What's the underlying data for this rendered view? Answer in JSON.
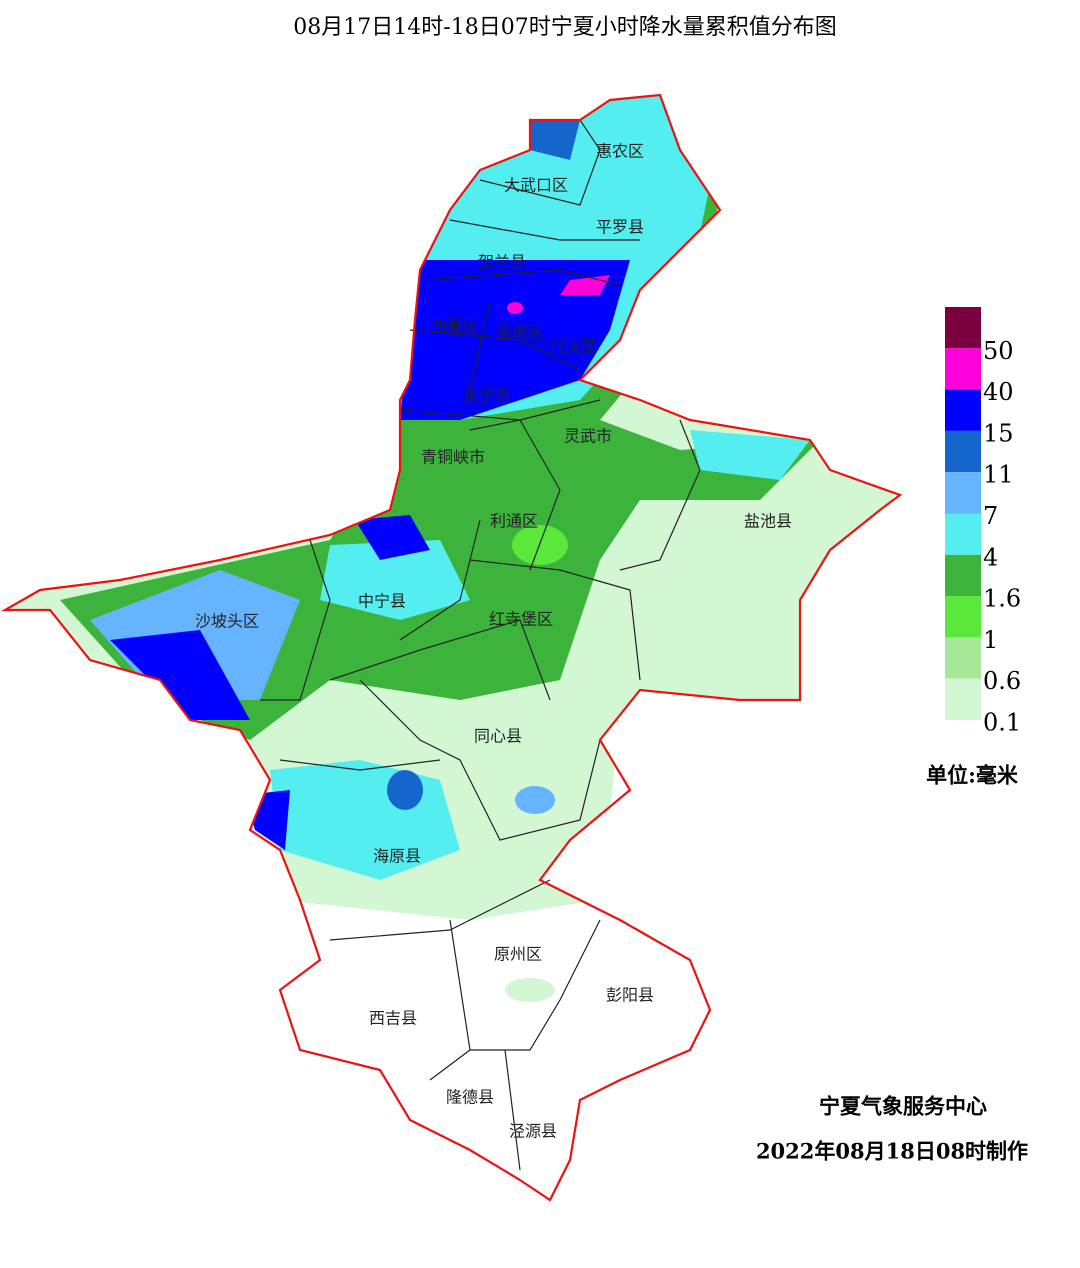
{
  "title": "08月17日14时-18日07时宁夏小时降水量累积值分布图",
  "districts": [
    "惠农区",
    "大武口区",
    "平罗县",
    "贺兰县",
    "西夏区",
    "金凤区",
    "兴庆区",
    "永宁县",
    "灵武市",
    "青铜峡市",
    "利通区",
    "盐池县",
    "中宁县",
    "沙坡头区",
    "红寺堡区",
    "同心县",
    "海原县",
    "原州区",
    "彭阳县",
    "西吉县",
    "隆德县",
    "泾源县"
  ],
  "legend": {
    "levels": [
      {
        "value": 50,
        "color": "#7a0040"
      },
      {
        "value": 40,
        "color": "#ff00dd"
      },
      {
        "value": 15,
        "color": "#0000ff"
      },
      {
        "value": 11,
        "color": "#1466cc"
      },
      {
        "value": 7,
        "color": "#66b3ff"
      },
      {
        "value": 4,
        "color": "#55eef0"
      },
      {
        "value": 1.6,
        "color": "#3cb43c"
      },
      {
        "value": 1,
        "color": "#5ae83a"
      },
      {
        "value": 0.6,
        "color": "#a6e898"
      },
      {
        "value": 0.1,
        "color": "#d2f7d2"
      }
    ],
    "unit": "单位:毫米"
  },
  "footer": {
    "agency": "宁夏气象服务中心",
    "made": "2022年08月18日08时制作"
  }
}
